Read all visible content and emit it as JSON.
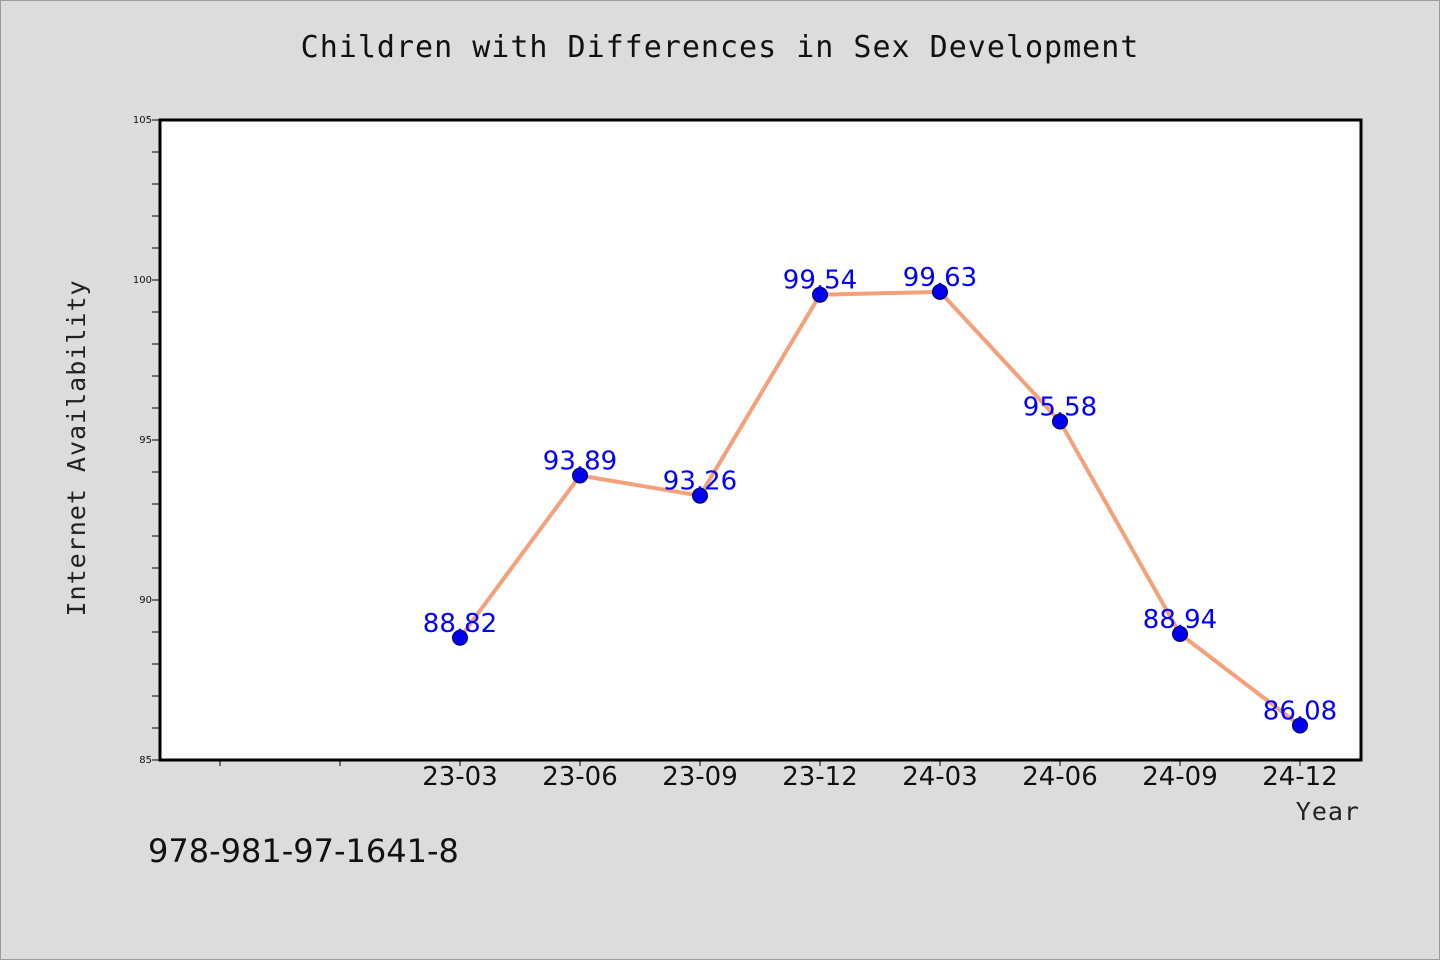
{
  "chart_data": {
    "type": "line",
    "title": "Children with Differences in Sex Development",
    "xlabel": "Year",
    "ylabel": "Internet Availability",
    "categories": [
      "23-03",
      "23-06",
      "23-09",
      "23-12",
      "24-03",
      "24-06",
      "24-09",
      "24-12"
    ],
    "series": [
      {
        "values": [
          88.82,
          93.89,
          93.26,
          99.54,
          99.63,
          95.58,
          88.94,
          86.08
        ],
        "data_labels": [
          "88.82",
          "93.89",
          "93.26",
          "99.54",
          "99.63",
          "95.58",
          "88.94",
          "86.08"
        ],
        "line_color": "#f4a07a",
        "marker_color": "#0000ee"
      }
    ],
    "ylim": [
      85,
      105
    ],
    "yticks": [
      "85",
      "90",
      "95",
      "100",
      "105"
    ],
    "grid": false,
    "label_color": "#0000ff"
  },
  "footer": {
    "isbn": "978-981-97-1641-8"
  }
}
